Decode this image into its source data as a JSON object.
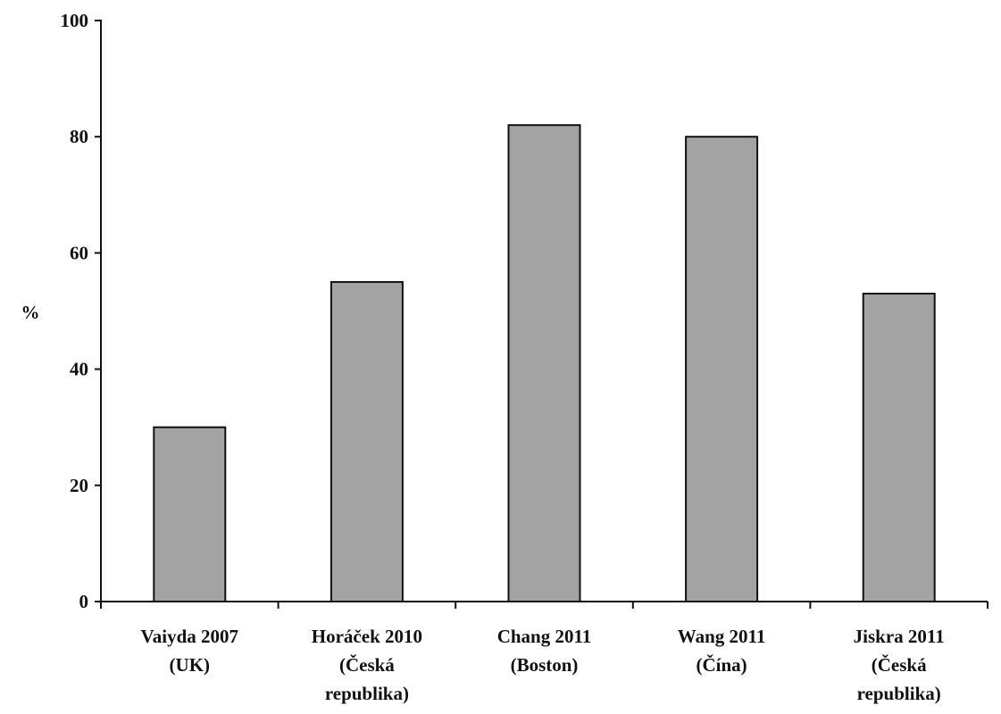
{
  "chart_data": {
    "type": "bar",
    "categories": [
      [
        "Vaiyda 2007",
        "(UK)"
      ],
      [
        "Horáček 2010",
        "(Česká",
        "republika)"
      ],
      [
        "Chang 2011",
        "(Boston)"
      ],
      [
        "Wang 2011",
        "(Čína)"
      ],
      [
        "Jiskra 2011",
        "(Česká",
        "republika)"
      ]
    ],
    "values": [
      30,
      55,
      82,
      80,
      53
    ],
    "ylabel": "%",
    "ylim": [
      0,
      100
    ],
    "yticks": [
      0,
      20,
      40,
      60,
      80,
      100
    ],
    "grid": false,
    "legend": "none",
    "bar_color": "#a3a3a3"
  }
}
